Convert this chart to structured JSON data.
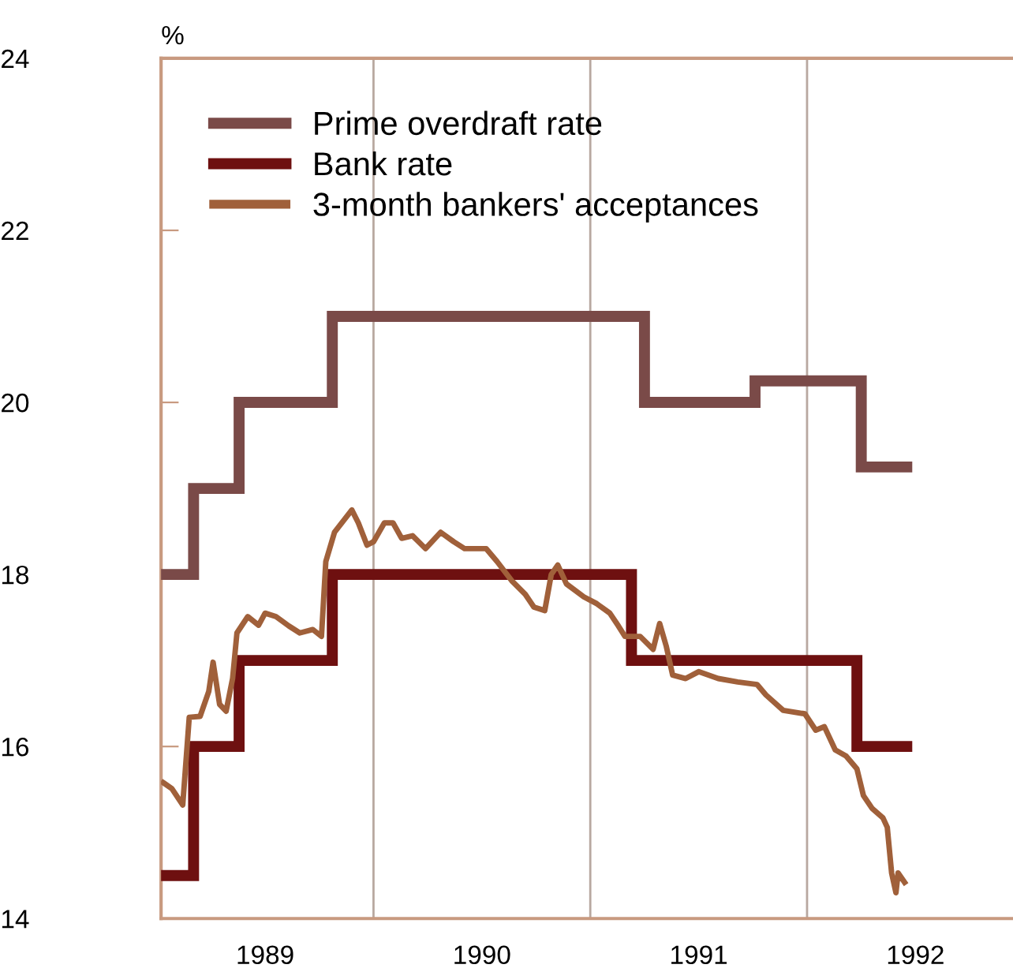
{
  "chart_data": {
    "type": "step",
    "ylabel": "%",
    "xlim": [
      1989.02,
      1992.95
    ],
    "ylim": [
      14,
      24
    ],
    "xticks": [
      {
        "value": 1989.5,
        "label": "1989"
      },
      {
        "value": 1990.5,
        "label": "1990"
      },
      {
        "value": 1991.5,
        "label": "1991"
      },
      {
        "value": 1992.5,
        "label": "1992"
      }
    ],
    "yticks": [
      14,
      16,
      18,
      20,
      22,
      24
    ],
    "ref_lines": [
      {
        "axis": "x",
        "value": 1990,
        "color": "#b8a8a0"
      },
      {
        "axis": "x",
        "value": 1991,
        "color": "#b8a8a0"
      },
      {
        "axis": "x",
        "value": 1992,
        "color": "#b8a8a0"
      }
    ],
    "grid": false,
    "legend": "top left",
    "series": [
      {
        "name": "Prime overdraft rate",
        "color": "#7a4a48",
        "x": [
          1989.03,
          1989.17,
          1989.38,
          1989.81,
          1991.25,
          1991.76,
          1992.25,
          1992.46
        ],
        "values": [
          18,
          19,
          20,
          21,
          20,
          20.25,
          19.25,
          19.25
        ]
      },
      {
        "name": "Bank rate",
        "color": "#6e1010",
        "x": [
          1989.03,
          1989.17,
          1989.38,
          1989.81,
          1991.19,
          1992.23,
          1992.46
        ],
        "values": [
          14.5,
          16,
          17,
          18,
          17,
          16,
          16
        ]
      },
      {
        "name": "3-month bankers' acceptances",
        "color": "#a0603a",
        "type": "line",
        "x": [
          1989.03,
          1989.07,
          1989.12,
          1989.15,
          1989.2,
          1989.24,
          1989.26,
          1989.29,
          1989.32,
          1989.35,
          1989.37,
          1989.42,
          1989.47,
          1989.5,
          1989.55,
          1989.61,
          1989.66,
          1989.72,
          1989.76,
          1989.78,
          1989.82,
          1989.9,
          1989.93,
          1989.97,
          1990.0,
          1990.05,
          1990.09,
          1990.13,
          1990.18,
          1990.24,
          1990.31,
          1990.37,
          1990.42,
          1990.52,
          1990.57,
          1990.64,
          1990.7,
          1990.74,
          1990.79,
          1990.82,
          1990.85,
          1990.89,
          1990.97,
          1991.03,
          1991.09,
          1991.13,
          1991.16,
          1991.23,
          1991.29,
          1991.32,
          1991.35,
          1991.38,
          1991.44,
          1991.5,
          1991.59,
          1991.68,
          1991.77,
          1991.81,
          1991.89,
          1991.99,
          1992.04,
          1992.08,
          1992.13,
          1992.18,
          1992.23,
          1992.26,
          1992.3,
          1992.35,
          1992.37,
          1992.39,
          1992.41,
          1992.42,
          1992.45
        ],
        "values": [
          15.58,
          15.51,
          15.32,
          16.34,
          16.35,
          16.64,
          16.98,
          16.49,
          16.41,
          16.79,
          17.32,
          17.51,
          17.41,
          17.55,
          17.51,
          17.4,
          17.32,
          17.36,
          17.28,
          18.15,
          18.49,
          18.75,
          18.6,
          18.34,
          18.38,
          18.6,
          18.6,
          18.42,
          18.45,
          18.3,
          18.49,
          18.38,
          18.3,
          18.3,
          18.15,
          17.92,
          17.77,
          17.62,
          17.58,
          18.0,
          18.11,
          17.89,
          17.74,
          17.66,
          17.55,
          17.4,
          17.28,
          17.28,
          17.13,
          17.43,
          17.17,
          16.83,
          16.79,
          16.87,
          16.79,
          16.75,
          16.72,
          16.6,
          16.42,
          16.38,
          16.19,
          16.23,
          15.96,
          15.89,
          15.74,
          15.43,
          15.28,
          15.17,
          15.06,
          14.53,
          14.3,
          14.53,
          14.42
        ]
      }
    ]
  }
}
